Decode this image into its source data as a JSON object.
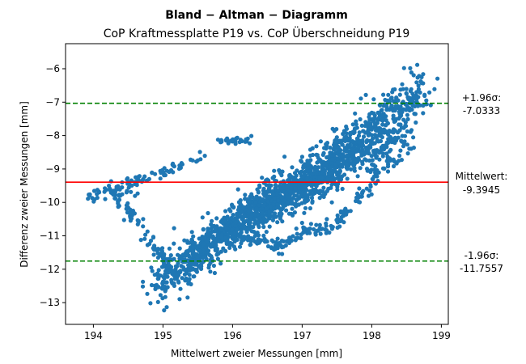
{
  "chart_data": {
    "type": "scatter",
    "title": "Bland − Altman − Diagramm",
    "subtitle": "CoP Kraftmessplatte P19 vs. CoP Überschneidung P19",
    "xlabel": "Mittelwert zweier Messungen [mm]",
    "ylabel": "Differenz zweier Messungen [mm]",
    "xlim": [
      193.6,
      199.1
    ],
    "ylim": [
      -13.65,
      -5.25
    ],
    "xticks": [
      "194",
      "195",
      "196",
      "197",
      "198",
      "199"
    ],
    "yticks": [
      "−6",
      "−7",
      "−8",
      "−9",
      "−10",
      "−11",
      "−12",
      "−13"
    ],
    "grid": false,
    "point_color": "#1f77b4",
    "lines": {
      "mean": {
        "value": -9.3945,
        "color": "#ff0000",
        "label_1": "Mittelwert:",
        "label_2": "-9.3945"
      },
      "upper": {
        "value": -7.0333,
        "color": "#008000",
        "label_1": "+1.96σ:",
        "label_2": "-7.0333"
      },
      "lower": {
        "value": -11.7557,
        "color": "#008000",
        "label_1": "-1.96σ:",
        "label_2": "-11.7557"
      }
    },
    "clusters": [
      {
        "from": [
          194.85,
          -12.55
        ],
        "to": [
          198.8,
          -6.55
        ],
        "n": 900,
        "spread": 0.32
      },
      {
        "from": [
          195.3,
          -11.7
        ],
        "to": [
          197.5,
          -8.9
        ],
        "n": 500,
        "spread": 0.35
      },
      {
        "from": [
          196.0,
          -10.6
        ],
        "to": [
          198.5,
          -7.9
        ],
        "n": 450,
        "spread": 0.28
      },
      {
        "from": [
          193.9,
          -9.9
        ],
        "to": [
          194.7,
          -9.4
        ],
        "n": 60,
        "spread": 0.12
      },
      {
        "from": [
          194.3,
          -9.7
        ],
        "to": [
          195.1,
          -11.9
        ],
        "n": 70,
        "spread": 0.12
      },
      {
        "from": [
          194.6,
          -9.4
        ],
        "to": [
          195.6,
          -8.6
        ],
        "n": 40,
        "spread": 0.08
      },
      {
        "from": [
          195.8,
          -8.2
        ],
        "to": [
          196.3,
          -8.1
        ],
        "n": 30,
        "spread": 0.06
      },
      {
        "from": [
          196.0,
          -11.0
        ],
        "to": [
          196.8,
          -11.35
        ],
        "n": 60,
        "spread": 0.1
      },
      {
        "from": [
          196.8,
          -11.0
        ],
        "to": [
          197.6,
          -10.6
        ],
        "n": 60,
        "spread": 0.12
      },
      {
        "from": [
          197.5,
          -10.5
        ],
        "to": [
          198.1,
          -9.2
        ],
        "n": 40,
        "spread": 0.12
      },
      {
        "from": [
          198.0,
          -9.3
        ],
        "to": [
          198.6,
          -8.3
        ],
        "n": 30,
        "spread": 0.12
      }
    ]
  }
}
